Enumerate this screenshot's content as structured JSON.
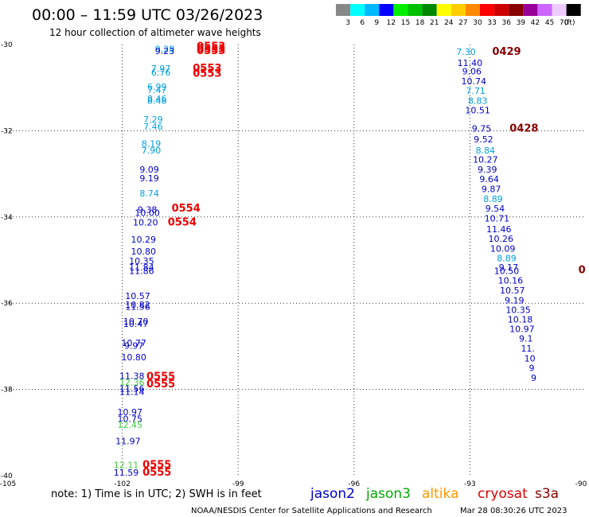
{
  "header": {
    "title": "00:00 – 11:59 UTC 03/26/2023",
    "subtitle": "12 hour collection of altimeter wave heights"
  },
  "colorbar": {
    "bins": [
      {
        "label": "3",
        "color": "#888888"
      },
      {
        "label": "6",
        "color": "#00ffff"
      },
      {
        "label": "9",
        "color": "#00b8ff"
      },
      {
        "label": "12",
        "color": "#0000ff"
      },
      {
        "label": "15",
        "color": "#00ee00"
      },
      {
        "label": "18",
        "color": "#00c000"
      },
      {
        "label": "21",
        "color": "#008800"
      },
      {
        "label": "24",
        "color": "#ffff00"
      },
      {
        "label": "27",
        "color": "#ffcc00"
      },
      {
        "label": "30",
        "color": "#ff8800"
      },
      {
        "label": "33",
        "color": "#ff0000"
      },
      {
        "label": "36",
        "color": "#cc0000"
      },
      {
        "label": "39",
        "color": "#880000"
      },
      {
        "label": "42",
        "color": "#990099"
      },
      {
        "label": "45",
        "color": "#cc66ff"
      },
      {
        "label": "70",
        "color": "#eeccff"
      },
      {
        "label": "",
        "color": "#000000"
      }
    ],
    "unit": "(ft)"
  },
  "footer": {
    "note": "note:  1) Time is in UTC;  2) SWH is in feet",
    "credit": "NOAA/NESDIS Center for Satellite Applications and Research",
    "timestamp": "Mar 28 08:30:26 UTC 2023"
  },
  "missions": [
    {
      "name": "jason2",
      "color": "#0000cc"
    },
    {
      "name": "jason3",
      "color": "#00aa00"
    },
    {
      "name": "altika",
      "color": "#ff9900"
    },
    {
      "name": "cryosat",
      "color": "#dd0000"
    },
    {
      "name": "s3a",
      "color": "#880000"
    }
  ],
  "chart_data": {
    "type": "scatter",
    "title": "00:00 – 11:59 UTC 03/26/2023",
    "subtitle": "12 hour collection of altimeter wave heights",
    "xlabel": "",
    "ylabel": "",
    "xlim": [
      -105,
      -90
    ],
    "ylim": [
      -40,
      -30
    ],
    "x_ticks": [
      -105,
      -102,
      -99,
      -96,
      -93,
      -90
    ],
    "y_ticks": [
      -30,
      -32,
      -34,
      -36,
      -38,
      -40
    ],
    "x_tick_labels": [
      "-105",
      "-102",
      "-99",
      "-96",
      "-93",
      "-90"
    ],
    "y_tick_labels": [
      "-30",
      "-32",
      "-34",
      "-36",
      "-38",
      "-40"
    ],
    "grid": true,
    "observations": [
      {
        "x": -100.9,
        "y": -30.1,
        "label": "9.28",
        "color": "#00a0e0"
      },
      {
        "x": -100.9,
        "y": -30.15,
        "label": "9.23",
        "color": "#0000cc"
      },
      {
        "x": -101.0,
        "y": -30.55,
        "label": "7.97",
        "color": "#00a0e0"
      },
      {
        "x": -101.0,
        "y": -30.65,
        "label": "6.76",
        "color": "#00a0e0"
      },
      {
        "x": -101.1,
        "y": -30.98,
        "label": "6.99",
        "color": "#00a0e0"
      },
      {
        "x": -101.1,
        "y": -31.05,
        "label": "7.47",
        "color": "#00a0e0"
      },
      {
        "x": -101.1,
        "y": -31.25,
        "label": "8.46",
        "color": "#00a0e0"
      },
      {
        "x": -101.1,
        "y": -31.3,
        "label": "8.48",
        "color": "#00a0e0"
      },
      {
        "x": -101.2,
        "y": -31.73,
        "label": "7.29",
        "color": "#00a0e0"
      },
      {
        "x": -101.2,
        "y": -31.9,
        "label": "7.46",
        "color": "#00a0e0"
      },
      {
        "x": -101.25,
        "y": -32.3,
        "label": "8.19",
        "color": "#00a0e0"
      },
      {
        "x": -101.25,
        "y": -32.45,
        "label": "7.90",
        "color": "#00a0e0"
      },
      {
        "x": -101.3,
        "y": -32.9,
        "label": "9.09",
        "color": "#0000cc"
      },
      {
        "x": -101.3,
        "y": -33.1,
        "label": "9.19",
        "color": "#0000cc"
      },
      {
        "x": -101.3,
        "y": -33.45,
        "label": "8.74",
        "color": "#00a0e0"
      },
      {
        "x": -101.35,
        "y": -33.83,
        "label": "9.38",
        "color": "#0000cc"
      },
      {
        "x": -101.35,
        "y": -33.9,
        "label": "10.00",
        "color": "#0000cc"
      },
      {
        "x": -101.4,
        "y": -34.12,
        "label": "10.20",
        "color": "#0000cc"
      },
      {
        "x": -101.45,
        "y": -34.52,
        "label": "10.29",
        "color": "#0000cc"
      },
      {
        "x": -101.45,
        "y": -34.8,
        "label": "10.80",
        "color": "#0000cc"
      },
      {
        "x": -101.5,
        "y": -35.02,
        "label": "10.35",
        "color": "#0000cc"
      },
      {
        "x": -101.5,
        "y": -35.17,
        "label": "11.84",
        "color": "#0000cc"
      },
      {
        "x": -101.5,
        "y": -35.25,
        "label": "11.86",
        "color": "#0000cc"
      },
      {
        "x": -101.6,
        "y": -35.83,
        "label": "10.57",
        "color": "#0000cc"
      },
      {
        "x": -101.6,
        "y": -36.03,
        "label": "10.82",
        "color": "#0000cc"
      },
      {
        "x": -101.6,
        "y": -36.08,
        "label": "11.56",
        "color": "#0000cc"
      },
      {
        "x": -101.65,
        "y": -36.42,
        "label": "10.70",
        "color": "#0000cc"
      },
      {
        "x": -101.65,
        "y": -36.48,
        "label": "10.47",
        "color": "#0000cc"
      },
      {
        "x": -101.7,
        "y": -36.92,
        "label": "10.77",
        "color": "#0000cc"
      },
      {
        "x": -101.7,
        "y": -36.98,
        "label": "9.97",
        "color": "#0000cc"
      },
      {
        "x": -101.7,
        "y": -37.25,
        "label": "10.80",
        "color": "#0000cc"
      },
      {
        "x": -101.75,
        "y": -37.68,
        "label": "11.38",
        "color": "#0000cc"
      },
      {
        "x": -101.75,
        "y": -37.83,
        "label": "12.36",
        "color": "#44cc44"
      },
      {
        "x": -101.75,
        "y": -37.98,
        "label": "11.56",
        "color": "#0000cc"
      },
      {
        "x": -101.75,
        "y": -38.05,
        "label": "11.14",
        "color": "#0000cc"
      },
      {
        "x": -101.8,
        "y": -38.52,
        "label": "10.97",
        "color": "#0000cc"
      },
      {
        "x": -101.8,
        "y": -38.68,
        "label": "10.75",
        "color": "#0000cc"
      },
      {
        "x": -101.8,
        "y": -38.82,
        "label": "12.45",
        "color": "#44cc44"
      },
      {
        "x": -101.85,
        "y": -39.2,
        "label": "11.97",
        "color": "#0000cc"
      },
      {
        "x": -101.9,
        "y": -39.75,
        "label": "12.11",
        "color": "#44cc44"
      },
      {
        "x": -101.9,
        "y": -39.93,
        "label": "11.59",
        "color": "#0000cc"
      },
      {
        "x": -93.1,
        "y": -30.17,
        "label": "7.30",
        "color": "#00a0e0"
      },
      {
        "x": -93.0,
        "y": -30.42,
        "label": "11.40",
        "color": "#0000cc"
      },
      {
        "x": -92.95,
        "y": -30.62,
        "label": "9.06",
        "color": "#0000cc"
      },
      {
        "x": -92.9,
        "y": -30.85,
        "label": "10.74",
        "color": "#0000cc"
      },
      {
        "x": -92.85,
        "y": -31.07,
        "label": "7.71",
        "color": "#00a0e0"
      },
      {
        "x": -92.8,
        "y": -31.3,
        "label": "8.83",
        "color": "#00a0e0"
      },
      {
        "x": -92.8,
        "y": -31.52,
        "label": "10.51",
        "color": "#0000cc"
      },
      {
        "x": -92.7,
        "y": -31.95,
        "label": "9.75",
        "color": "#0000cc"
      },
      {
        "x": -92.65,
        "y": -32.2,
        "label": "9.52",
        "color": "#0000cc"
      },
      {
        "x": -92.6,
        "y": -32.45,
        "label": "8.84",
        "color": "#00a0e0"
      },
      {
        "x": -92.6,
        "y": -32.67,
        "label": "10.27",
        "color": "#0000cc"
      },
      {
        "x": -92.55,
        "y": -32.9,
        "label": "9.39",
        "color": "#0000cc"
      },
      {
        "x": -92.5,
        "y": -33.12,
        "label": "9.64",
        "color": "#0000cc"
      },
      {
        "x": -92.45,
        "y": -33.35,
        "label": "9.87",
        "color": "#0000cc"
      },
      {
        "x": -92.4,
        "y": -33.58,
        "label": "8.89",
        "color": "#00a0e0"
      },
      {
        "x": -92.35,
        "y": -33.8,
        "label": "9.54",
        "color": "#0000cc"
      },
      {
        "x": -92.3,
        "y": -34.03,
        "label": "10.71",
        "color": "#0000cc"
      },
      {
        "x": -92.25,
        "y": -34.28,
        "label": "11.46",
        "color": "#0000cc"
      },
      {
        "x": -92.2,
        "y": -34.5,
        "label": "10.26",
        "color": "#0000cc"
      },
      {
        "x": -92.15,
        "y": -34.73,
        "label": "10.09",
        "color": "#0000cc"
      },
      {
        "x": -92.05,
        "y": -34.95,
        "label": "8.89",
        "color": "#00a0e0"
      },
      {
        "x": -92.0,
        "y": -35.17,
        "label": "9.17",
        "color": "#0000cc"
      },
      {
        "x": -92.05,
        "y": -35.25,
        "label": "10.50",
        "color": "#0000cc"
      },
      {
        "x": -91.95,
        "y": -35.47,
        "label": "10.16",
        "color": "#0000cc"
      },
      {
        "x": -91.9,
        "y": -35.7,
        "label": "10.57",
        "color": "#0000cc"
      },
      {
        "x": -91.85,
        "y": -35.93,
        "label": "9.19",
        "color": "#0000cc"
      },
      {
        "x": -91.75,
        "y": -36.15,
        "label": "10.35",
        "color": "#0000cc"
      },
      {
        "x": -91.7,
        "y": -36.37,
        "label": "10.18",
        "color": "#0000cc"
      },
      {
        "x": -91.65,
        "y": -36.6,
        "label": "10.97",
        "color": "#0000cc"
      },
      {
        "x": -91.55,
        "y": -36.82,
        "label": "9.1",
        "color": "#0000cc"
      },
      {
        "x": -91.5,
        "y": -37.05,
        "label": "11.",
        "color": "#0000cc"
      },
      {
        "x": -91.45,
        "y": -37.28,
        "label": "10",
        "color": "#0000cc"
      },
      {
        "x": -91.4,
        "y": -37.5,
        "label": "9",
        "color": "#0000cc"
      },
      {
        "x": -91.35,
        "y": -37.73,
        "label": "9",
        "color": "#0000cc"
      }
    ],
    "pass_times": [
      {
        "x": -99.7,
        "y": -30.05,
        "label": "0553",
        "color": "#ee0000"
      },
      {
        "x": -99.7,
        "y": -30.1,
        "label": "0553",
        "color": "#ee0000"
      },
      {
        "x": -99.7,
        "y": -30.15,
        "label": "0553",
        "color": "#ee0000"
      },
      {
        "x": -99.8,
        "y": -30.55,
        "label": "0553",
        "color": "#ee0000"
      },
      {
        "x": -99.8,
        "y": -30.67,
        "label": "0553",
        "color": "#ee0000"
      },
      {
        "x": -100.35,
        "y": -33.8,
        "label": "0554",
        "color": "#ee0000"
      },
      {
        "x": -100.45,
        "y": -34.12,
        "label": "0554",
        "color": "#ee0000"
      },
      {
        "x": -101.0,
        "y": -37.7,
        "label": "0555",
        "color": "#ee0000"
      },
      {
        "x": -101.0,
        "y": -37.88,
        "label": "0555",
        "color": "#ee0000"
      },
      {
        "x": -101.1,
        "y": -39.75,
        "label": "0555",
        "color": "#ee0000"
      },
      {
        "x": -101.1,
        "y": -39.93,
        "label": "0555",
        "color": "#ee0000"
      },
      {
        "x": -92.05,
        "y": -30.17,
        "label": "0429",
        "color": "#880000"
      },
      {
        "x": -91.6,
        "y": -31.95,
        "label": "0428",
        "color": "#880000"
      },
      {
        "x": -90.1,
        "y": -35.23,
        "label": "0",
        "color": "#880000"
      }
    ]
  }
}
